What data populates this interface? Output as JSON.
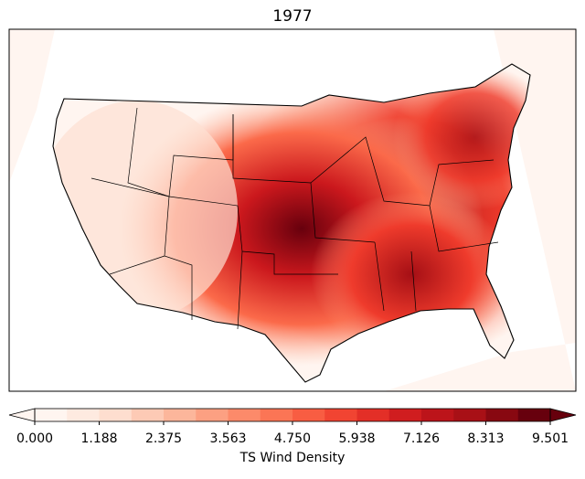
{
  "title": "1977",
  "colorbar": {
    "label": "TS Wind Density",
    "colors": [
      "#fff5f0",
      "#fee0d2",
      "#fcbba1",
      "#fc9272",
      "#fb6a4a",
      "#ef3b2c",
      "#cb181d",
      "#a50f15",
      "#67000d"
    ],
    "ticks": [
      {
        "value": 0.0,
        "label": "0.000"
      },
      {
        "value": 1.188,
        "label": "1.188"
      },
      {
        "value": 2.375,
        "label": "2.375"
      },
      {
        "value": 3.563,
        "label": "3.563"
      },
      {
        "value": 4.75,
        "label": "4.750"
      },
      {
        "value": 5.938,
        "label": "5.938"
      },
      {
        "value": 7.126,
        "label": "7.126"
      },
      {
        "value": 8.313,
        "label": "8.313"
      },
      {
        "value": 9.501,
        "label": "9.501"
      }
    ]
  }
}
